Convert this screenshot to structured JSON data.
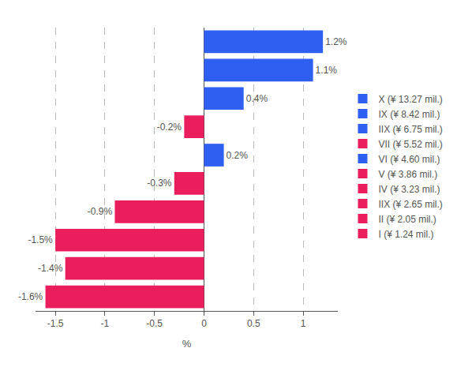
{
  "chart_data": {
    "type": "bar",
    "orientation": "horizontal",
    "categories": [
      "X (¥ 13.27 mil.)",
      "IX (¥ 8.42 mil.)",
      "IIX (¥ 6.75 mil.)",
      "VII (¥ 5.52 mil.)",
      "VI (¥ 4.60 mil.)",
      "V (¥ 3.86 mil.)",
      "IV (¥ 3.23 mil.)",
      "IIX (¥ 2.65 mil.)",
      "II (¥ 2.05 mil.)",
      "I (¥ 1.24 mil.)"
    ],
    "values": [
      1.2,
      1.1,
      0.4,
      -0.2,
      0.2,
      -0.3,
      -0.9,
      -1.5,
      -1.4,
      -1.6
    ],
    "value_labels": [
      "1.2%",
      "1.1%",
      "0.4%",
      "-0.2%",
      "0.2%",
      "-0.3%",
      "-0.9%",
      "-1.5%",
      "-1.4%",
      "-1.6%"
    ],
    "colors": [
      "#2f5ff0",
      "#2f5ff0",
      "#2f5ff0",
      "#ea1e5c",
      "#2f5ff0",
      "#ea1e5c",
      "#ea1e5c",
      "#ea1e5c",
      "#ea1e5c",
      "#ea1e5c"
    ],
    "x_label": "%",
    "xlim": [
      -1.7,
      1.35
    ],
    "xticks": [
      -1.5,
      -1,
      -0.5,
      0,
      0.5,
      1
    ],
    "grid": true,
    "data_labels": true,
    "tick_labels": "x",
    "legend": "right"
  }
}
